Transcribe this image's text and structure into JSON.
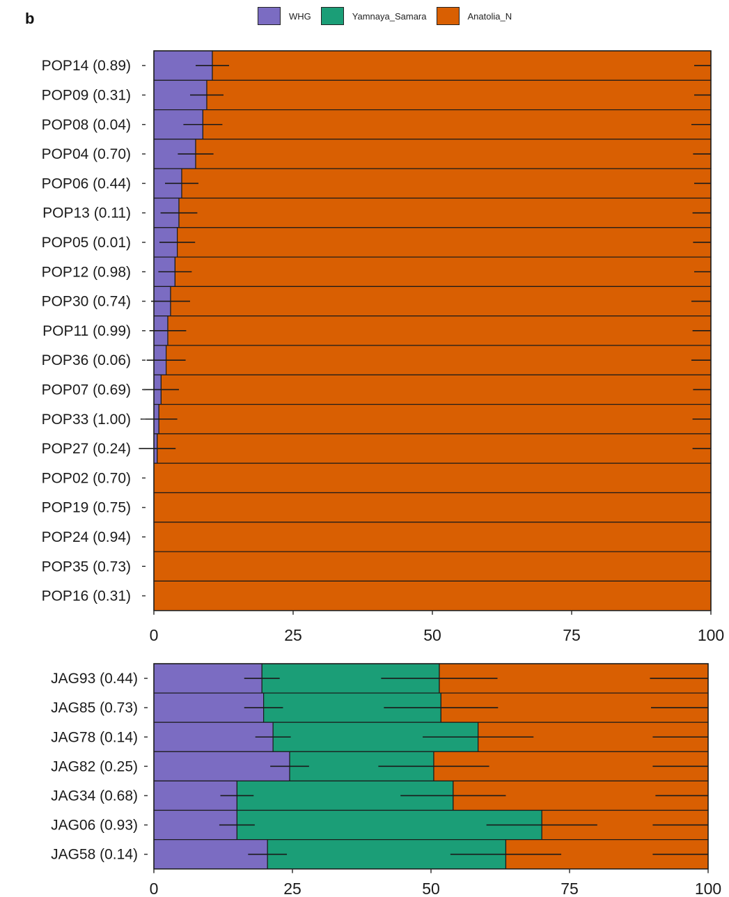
{
  "panel_label": "b",
  "legend": [
    {
      "label": "WHG",
      "color": "#7b6cc2"
    },
    {
      "label": "Yamnaya_Samara",
      "color": "#1b9e77"
    },
    {
      "label": "Anatolia_N",
      "color": "#d95f02"
    }
  ],
  "chart_data": [
    {
      "type": "bar",
      "orientation": "horizontal",
      "stacked": true,
      "xlim": [
        0,
        100
      ],
      "xticks": [
        0,
        25,
        50,
        75,
        100
      ],
      "xlabel": "",
      "ylabel": "",
      "series_names": [
        "WHG",
        "Yamnaya_Samara",
        "Anatolia_N"
      ],
      "rows": [
        {
          "label": "POP14 (0.89)",
          "values": [
            10.5,
            0,
            89.5
          ],
          "errors": [
            [
              10.5,
              3
            ],
            [
              100,
              3
            ]
          ]
        },
        {
          "label": "POP09 (0.31)",
          "values": [
            9.5,
            0,
            90.5
          ],
          "errors": [
            [
              9.5,
              3
            ],
            [
              100,
              3
            ]
          ]
        },
        {
          "label": "POP08 (0.04)",
          "values": [
            8.8,
            0,
            91.2
          ],
          "errors": [
            [
              8.8,
              3.5
            ],
            [
              100,
              3.5
            ]
          ]
        },
        {
          "label": "POP04 (0.70)",
          "values": [
            7.5,
            0,
            92.5
          ],
          "errors": [
            [
              7.5,
              3.2
            ],
            [
              100,
              3.2
            ]
          ]
        },
        {
          "label": "POP06 (0.44)",
          "values": [
            5,
            0,
            95
          ],
          "errors": [
            [
              5,
              3
            ],
            [
              100,
              3
            ]
          ]
        },
        {
          "label": "POP13 (0.11)",
          "values": [
            4.5,
            0,
            95.5
          ],
          "errors": [
            [
              4.5,
              3.3
            ],
            [
              100,
              3.3
            ]
          ]
        },
        {
          "label": "POP05 (0.01)",
          "values": [
            4.2,
            0,
            95.8
          ],
          "errors": [
            [
              4.2,
              3.2
            ],
            [
              100,
              3.2
            ]
          ]
        },
        {
          "label": "POP12 (0.98)",
          "values": [
            3.8,
            0,
            96.2
          ],
          "errors": [
            [
              3.8,
              3
            ],
            [
              100,
              3
            ]
          ]
        },
        {
          "label": "POP30 (0.74)",
          "values": [
            3,
            0,
            97
          ],
          "errors": [
            [
              3,
              3.5
            ],
            [
              100,
              3.5
            ]
          ]
        },
        {
          "label": "POP11 (0.99)",
          "values": [
            2.5,
            0,
            97.5
          ],
          "errors": [
            [
              2.5,
              3.3
            ],
            [
              100,
              3.3
            ]
          ]
        },
        {
          "label": "POP36 (0.06)",
          "values": [
            2.2,
            0,
            97.8
          ],
          "errors": [
            [
              2.2,
              3.5
            ],
            [
              100,
              3.5
            ]
          ]
        },
        {
          "label": "POP07 (0.69)",
          "values": [
            1.3,
            0,
            98.7
          ],
          "errors": [
            [
              1.3,
              3.2
            ],
            [
              100,
              3.2
            ]
          ]
        },
        {
          "label": "POP33 (1.00)",
          "values": [
            0.9,
            0,
            99.1
          ],
          "errors": [
            [
              0.9,
              3.3
            ],
            [
              100,
              3.3
            ]
          ]
        },
        {
          "label": "POP27 (0.24)",
          "values": [
            0.6,
            0,
            99.4
          ],
          "errors": [
            [
              0.6,
              3.3
            ],
            [
              100,
              3.3
            ]
          ]
        },
        {
          "label": "POP02 (0.70)",
          "values": [
            0,
            0,
            100
          ],
          "errors": []
        },
        {
          "label": "POP19 (0.75)",
          "values": [
            0,
            0,
            100
          ],
          "errors": []
        },
        {
          "label": "POP24 (0.94)",
          "values": [
            0,
            0,
            100
          ],
          "errors": []
        },
        {
          "label": "POP35 (0.73)",
          "values": [
            0,
            0,
            100
          ],
          "errors": []
        },
        {
          "label": "POP16 (0.31)",
          "values": [
            0,
            0,
            100
          ],
          "errors": []
        }
      ]
    },
    {
      "type": "bar",
      "orientation": "horizontal",
      "stacked": true,
      "xlim": [
        0,
        100
      ],
      "xticks": [
        0,
        25,
        50,
        75,
        100
      ],
      "xlabel": "",
      "ylabel": "",
      "series_names": [
        "WHG",
        "Yamnaya_Samara",
        "Anatolia_N"
      ],
      "rows": [
        {
          "label": "JAG93 (0.44)",
          "values": [
            19.5,
            32,
            48.5
          ],
          "errors": [
            [
              19.5,
              3.2
            ],
            [
              51.5,
              10.5
            ],
            [
              100,
              10.5
            ]
          ]
        },
        {
          "label": "JAG85 (0.73)",
          "values": [
            19.8,
            32,
            48.2
          ],
          "errors": [
            [
              19.8,
              3.5
            ],
            [
              51.8,
              10.3
            ],
            [
              100,
              10.3
            ]
          ]
        },
        {
          "label": "JAG78 (0.14)",
          "values": [
            21.5,
            37,
            41.5
          ],
          "errors": [
            [
              21.5,
              3.2
            ],
            [
              58.5,
              10
            ],
            [
              100,
              10
            ]
          ]
        },
        {
          "label": "JAG82 (0.25)",
          "values": [
            24.5,
            26,
            49.5
          ],
          "errors": [
            [
              24.5,
              3.5
            ],
            [
              50.5,
              10
            ],
            [
              100,
              10
            ]
          ]
        },
        {
          "label": "JAG34 (0.68)",
          "values": [
            15,
            39,
            46
          ],
          "errors": [
            [
              15,
              3
            ],
            [
              54,
              9.5
            ],
            [
              100,
              9.5
            ]
          ]
        },
        {
          "label": "JAG06 (0.93)",
          "values": [
            15,
            55,
            30
          ],
          "errors": [
            [
              15,
              3.2
            ],
            [
              70,
              10
            ],
            [
              100,
              10
            ]
          ]
        },
        {
          "label": "JAG58 (0.14)",
          "values": [
            20.5,
            43,
            36.5
          ],
          "errors": [
            [
              20.5,
              3.5
            ],
            [
              63.5,
              10
            ],
            [
              100,
              10
            ]
          ]
        }
      ]
    }
  ]
}
